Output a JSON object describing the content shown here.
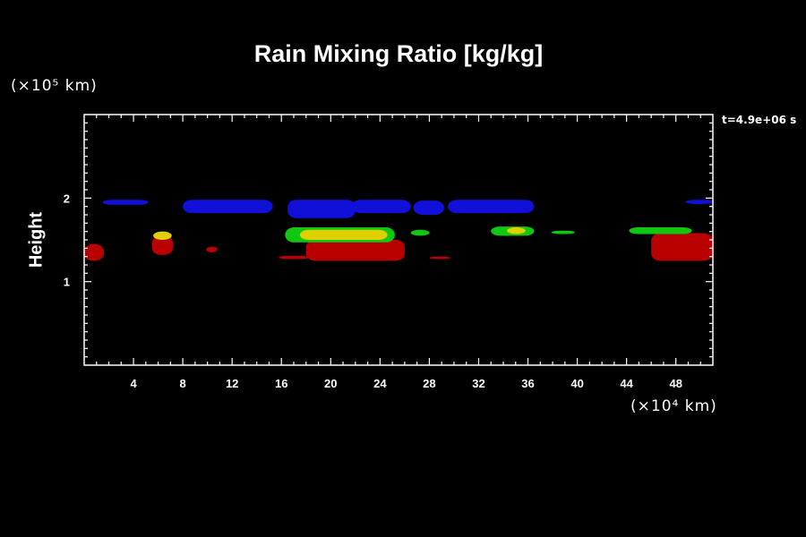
{
  "chart_data": {
    "type": "heatmap",
    "title": "Rain Mixing Ratio [kg/kg]",
    "ylabel": "Height",
    "xlabel": "",
    "y_unit": "(×10⁵ km)",
    "x_unit": "(×10⁴ km)",
    "timestamp": "t=4.9e+06 s",
    "xlim": [
      0,
      51
    ],
    "ylim": [
      0,
      3
    ],
    "x_ticks": [
      "4",
      "8",
      "12",
      "16",
      "20",
      "24",
      "28",
      "32",
      "36",
      "40",
      "44",
      "48"
    ],
    "y_ticks": [
      "1",
      "2"
    ],
    "colors": {
      "blue": "#1010d8",
      "red": "#b80000",
      "green": "#10c810",
      "yellow": "#e0d000"
    },
    "regions": [
      {
        "color": "blue",
        "x": [
          1.5,
          5.2
        ],
        "y": [
          1.92,
          1.98
        ]
      },
      {
        "color": "blue",
        "x": [
          8,
          15.3
        ],
        "y": [
          1.82,
          1.98
        ]
      },
      {
        "color": "blue",
        "x": [
          16.5,
          22
        ],
        "y": [
          1.76,
          1.98
        ]
      },
      {
        "color": "blue",
        "x": [
          21.7,
          26.5
        ],
        "y": [
          1.82,
          1.98
        ]
      },
      {
        "color": "blue",
        "x": [
          26.7,
          29.2
        ],
        "y": [
          1.8,
          1.97
        ]
      },
      {
        "color": "blue",
        "x": [
          29.5,
          36.5
        ],
        "y": [
          1.82,
          1.98
        ]
      },
      {
        "color": "blue",
        "x": [
          48.8,
          51
        ],
        "y": [
          1.93,
          1.98
        ]
      },
      {
        "color": "red",
        "x": [
          0,
          1.6
        ],
        "y": [
          1.25,
          1.45
        ]
      },
      {
        "color": "red",
        "x": [
          5.5,
          7.2
        ],
        "y": [
          1.32,
          1.55
        ]
      },
      {
        "color": "red",
        "x": [
          9.9,
          10.8
        ],
        "y": [
          1.35,
          1.42
        ]
      },
      {
        "color": "red",
        "x": [
          15.8,
          18.2
        ],
        "y": [
          1.27,
          1.31
        ]
      },
      {
        "color": "red",
        "x": [
          18,
          26
        ],
        "y": [
          1.25,
          1.5
        ]
      },
      {
        "color": "red",
        "x": [
          28,
          29.7
        ],
        "y": [
          1.27,
          1.3
        ]
      },
      {
        "color": "red",
        "x": [
          46,
          51
        ],
        "y": [
          1.25,
          1.58
        ]
      },
      {
        "color": "green",
        "x": [
          16.3,
          25.2
        ],
        "y": [
          1.47,
          1.65
        ]
      },
      {
        "color": "green",
        "x": [
          26.5,
          28
        ],
        "y": [
          1.55,
          1.62
        ]
      },
      {
        "color": "green",
        "x": [
          33,
          36.5
        ],
        "y": [
          1.55,
          1.66
        ]
      },
      {
        "color": "green",
        "x": [
          37.9,
          39.8
        ],
        "y": [
          1.57,
          1.61
        ]
      },
      {
        "color": "green",
        "x": [
          44.2,
          49.3
        ],
        "y": [
          1.57,
          1.65
        ]
      },
      {
        "color": "yellow",
        "x": [
          17.5,
          24.6
        ],
        "y": [
          1.5,
          1.62
        ]
      },
      {
        "color": "yellow",
        "x": [
          5.6,
          7.1
        ],
        "y": [
          1.5,
          1.6
        ]
      },
      {
        "color": "yellow",
        "x": [
          34.3,
          35.8
        ],
        "y": [
          1.57,
          1.65
        ]
      }
    ]
  }
}
